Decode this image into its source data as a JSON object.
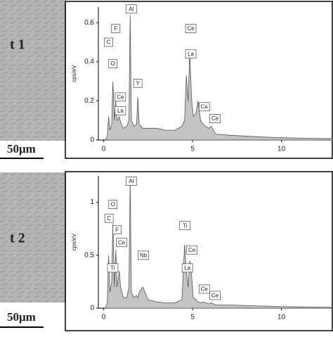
{
  "chart_data": [
    {
      "type": "area",
      "ylabel": "cps/eV",
      "color": "#c4c4c4",
      "x": [
        0.1,
        0.2,
        0.28,
        0.35,
        0.45,
        0.52,
        0.6,
        0.68,
        0.75,
        0.88,
        0.95,
        1.1,
        1.3,
        1.42,
        1.49,
        1.56,
        1.7,
        1.85,
        1.92,
        2.0,
        2.2,
        2.5,
        3.0,
        3.5,
        4.0,
        4.4,
        4.55,
        4.65,
        4.75,
        4.84,
        4.95,
        5.04,
        5.2,
        5.3,
        5.45,
        5.6,
        5.9,
        6.05,
        6.3,
        7,
        8,
        9,
        10,
        11,
        12,
        12.9
      ],
      "values": [
        0,
        0.02,
        0.12,
        0.05,
        0.08,
        0.3,
        0.1,
        0.2,
        0.1,
        0.12,
        0.09,
        0.06,
        0.07,
        0.1,
        0.64,
        0.1,
        0.07,
        0.08,
        0.22,
        0.08,
        0.06,
        0.06,
        0.06,
        0.05,
        0.05,
        0.07,
        0.1,
        0.33,
        0.2,
        0.45,
        0.2,
        0.12,
        0.14,
        0.2,
        0.1,
        0.08,
        0.06,
        0.07,
        0.03,
        0.025,
        0.02,
        0.015,
        0.012,
        0.01,
        0.008,
        0.007
      ],
      "xlim": [
        -0.3,
        12.9
      ],
      "ylim": [
        0,
        0.68
      ],
      "xticks": [
        0,
        5,
        10
      ],
      "yticks": [
        0,
        0.2,
        0.4,
        0.6
      ],
      "annotations": [
        {
          "text": "C",
          "x": 0.28,
          "y": 0.5
        },
        {
          "text": "F",
          "x": 0.68,
          "y": 0.57
        },
        {
          "text": "O",
          "x": 0.52,
          "y": 0.39
        },
        {
          "text": "Ce",
          "x": 0.88,
          "y": 0.22
        },
        {
          "text": "La",
          "x": 0.88,
          "y": 0.15
        },
        {
          "text": "Al",
          "x": 1.49,
          "y": 0.67
        },
        {
          "text": "Y",
          "x": 1.92,
          "y": 0.29
        },
        {
          "text": "Ce",
          "x": 4.84,
          "y": 0.57
        },
        {
          "text": "La",
          "x": 4.84,
          "y": 0.44
        },
        {
          "text": "Ce",
          "x": 5.6,
          "y": 0.17
        },
        {
          "text": "Ce",
          "x": 6.2,
          "y": 0.11
        }
      ]
    },
    {
      "type": "area",
      "ylabel": "cps/eV",
      "color": "#c4c4c4",
      "x": [
        0.1,
        0.2,
        0.28,
        0.35,
        0.45,
        0.52,
        0.6,
        0.68,
        0.75,
        0.88,
        0.95,
        1.1,
        1.3,
        1.42,
        1.49,
        1.56,
        1.7,
        1.85,
        1.92,
        2.0,
        2.2,
        2.5,
        3.0,
        3.5,
        4.0,
        4.4,
        4.55,
        4.65,
        4.75,
        4.84,
        4.95,
        5.04,
        5.2,
        5.3,
        5.45,
        5.6,
        5.9,
        6.05,
        6.3,
        7,
        8,
        9,
        10,
        11,
        12,
        12.9
      ],
      "values": [
        0,
        0.05,
        0.5,
        0.15,
        0.25,
        0.8,
        0.2,
        0.55,
        0.2,
        0.35,
        0.2,
        0.1,
        0.1,
        0.2,
        1.2,
        0.15,
        0.1,
        0.12,
        0.1,
        0.15,
        0.2,
        0.08,
        0.06,
        0.05,
        0.05,
        0.08,
        0.6,
        0.35,
        0.2,
        0.45,
        0.3,
        0.1,
        0.08,
        0.06,
        0.05,
        0.06,
        0.04,
        0.05,
        0.03,
        0.03,
        0.025,
        0.02,
        0.015,
        0.012,
        0.01,
        0.008
      ],
      "xlim": [
        -0.3,
        12.9
      ],
      "ylim": [
        0,
        1.25
      ],
      "xticks": [
        0,
        5,
        10
      ],
      "yticks": [
        0,
        0.5,
        1
      ],
      "annotations": [
        {
          "text": "Al",
          "x": 1.49,
          "y": 1.2
        },
        {
          "text": "O",
          "x": 0.52,
          "y": 0.98
        },
        {
          "text": "C",
          "x": 0.3,
          "y": 0.85
        },
        {
          "text": "F",
          "x": 0.75,
          "y": 0.74
        },
        {
          "text": "Ce",
          "x": 0.95,
          "y": 0.62
        },
        {
          "text": "Ti",
          "x": 0.45,
          "y": 0.38
        },
        {
          "text": "Nb",
          "x": 2.17,
          "y": 0.5
        },
        {
          "text": "Ti",
          "x": 4.51,
          "y": 0.78
        },
        {
          "text": "Ce",
          "x": 4.9,
          "y": 0.55
        },
        {
          "text": "La",
          "x": 4.65,
          "y": 0.38
        },
        {
          "text": "Ce",
          "x": 5.6,
          "y": 0.18
        },
        {
          "text": "Ce",
          "x": 6.2,
          "y": 0.12
        }
      ]
    }
  ],
  "panels": [
    {
      "label": "t 1",
      "scale_bar": "50μm"
    },
    {
      "label": "t 2",
      "scale_bar": "50μm"
    }
  ]
}
